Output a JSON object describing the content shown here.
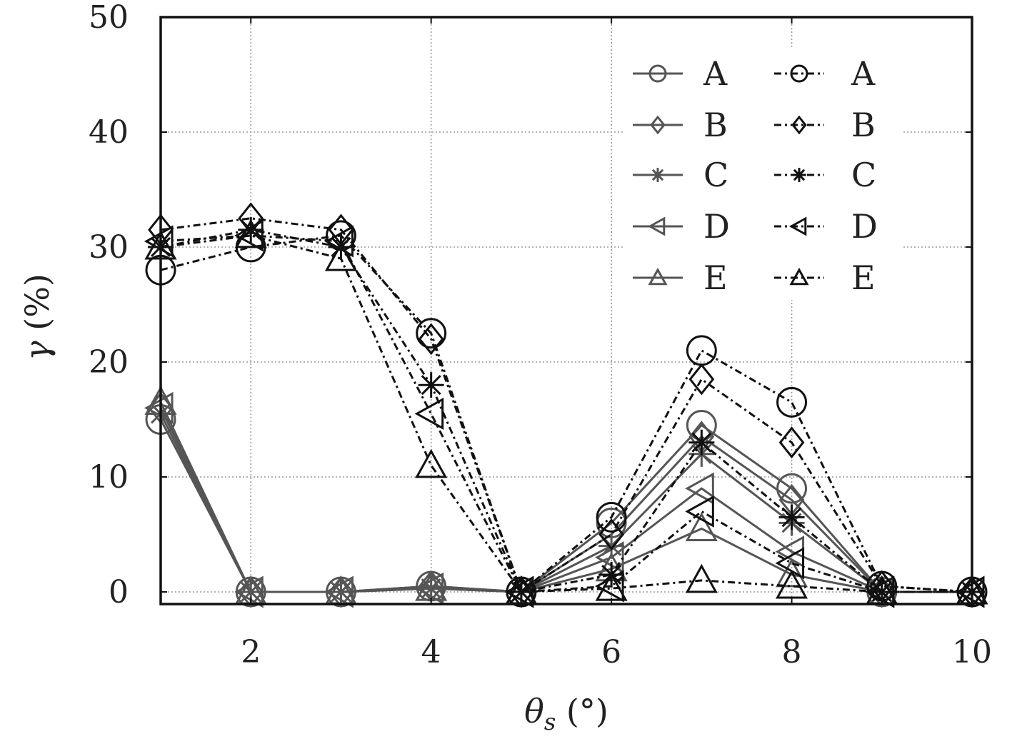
{
  "chart_data": {
    "type": "line",
    "xlabel_symbol": "θ",
    "xlabel_subscript": "s",
    "xlabel_unit": " (°)",
    "ylabel_symbol": "γ",
    "ylabel_unit": " (%)",
    "xlim": [
      1,
      10
    ],
    "ylim": [
      -1,
      50
    ],
    "x_ticks": [
      2,
      4,
      6,
      8,
      10
    ],
    "y_ticks": [
      0,
      10,
      20,
      30,
      40,
      50
    ],
    "grid": true,
    "legend_position": "top-right",
    "x": [
      1,
      2,
      3,
      4,
      5,
      6,
      7,
      8,
      9,
      10
    ],
    "series": [
      {
        "name": "A",
        "line_style": "solid",
        "marker": "circle",
        "color": "#555555",
        "values": [
          15,
          0,
          0,
          0.5,
          0,
          6,
          14.5,
          9,
          0,
          0
        ]
      },
      {
        "name": "B",
        "line_style": "solid",
        "marker": "diamond",
        "color": "#555555",
        "values": [
          16,
          0,
          0,
          0.5,
          0,
          5,
          13.5,
          8,
          0,
          0
        ]
      },
      {
        "name": "C",
        "line_style": "solid",
        "marker": "star",
        "color": "#555555",
        "values": [
          15.5,
          0,
          0,
          0.3,
          0,
          4,
          12,
          6,
          0,
          0
        ]
      },
      {
        "name": "D",
        "line_style": "solid",
        "marker": "triangle-left",
        "color": "#555555",
        "values": [
          16,
          0,
          0,
          0.3,
          0,
          3,
          9,
          3.5,
          0,
          0
        ]
      },
      {
        "name": "E",
        "line_style": "solid",
        "marker": "triangle-up",
        "color": "#555555",
        "values": [
          16.5,
          0,
          0,
          0.3,
          0,
          2,
          5.5,
          1.5,
          0,
          0
        ]
      },
      {
        "name": "A",
        "line_style": "dashdot",
        "marker": "circle",
        "color": "#111111",
        "values": [
          28,
          30,
          31,
          22.5,
          0,
          6.5,
          21,
          16.5,
          0.5,
          0
        ]
      },
      {
        "name": "B",
        "line_style": "dashdot",
        "marker": "diamond",
        "color": "#111111",
        "values": [
          31.5,
          32.5,
          31.5,
          22,
          0,
          5,
          18.5,
          13,
          0.5,
          0
        ]
      },
      {
        "name": "C",
        "line_style": "dashdot",
        "marker": "star",
        "color": "#111111",
        "values": [
          30,
          31.5,
          30,
          18,
          0,
          1.5,
          13,
          6.5,
          0,
          0
        ]
      },
      {
        "name": "D",
        "line_style": "dashdot",
        "marker": "triangle-left",
        "color": "#111111",
        "values": [
          30.5,
          31,
          30.5,
          15.5,
          0,
          0.5,
          7,
          2.5,
          0,
          0
        ]
      },
      {
        "name": "E",
        "line_style": "dashdot",
        "marker": "triangle-up",
        "color": "#111111",
        "values": [
          30,
          31,
          29,
          11,
          0,
          0.3,
          1,
          0.5,
          0,
          0
        ]
      }
    ]
  }
}
